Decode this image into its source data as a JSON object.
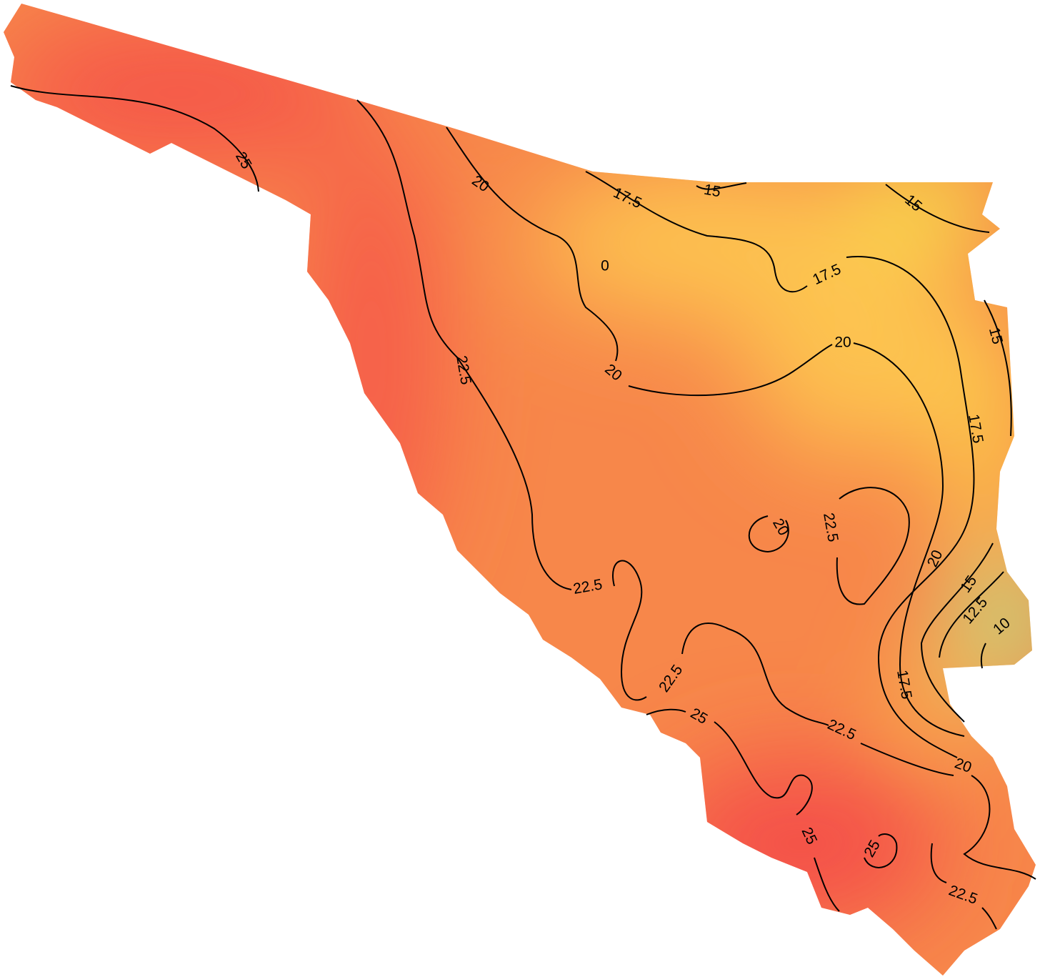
{
  "contour_labels": [
    "25",
    "20",
    "17.5",
    "15",
    "15",
    "0",
    "17.5",
    "20",
    "15",
    "20",
    "22.5",
    "17.5",
    "20",
    "22.5",
    "20",
    "22.5",
    "15",
    "12.5",
    "10",
    "22.5",
    "17.5",
    "25",
    "22.5",
    "20",
    "25",
    "25",
    "22.5"
  ]
}
